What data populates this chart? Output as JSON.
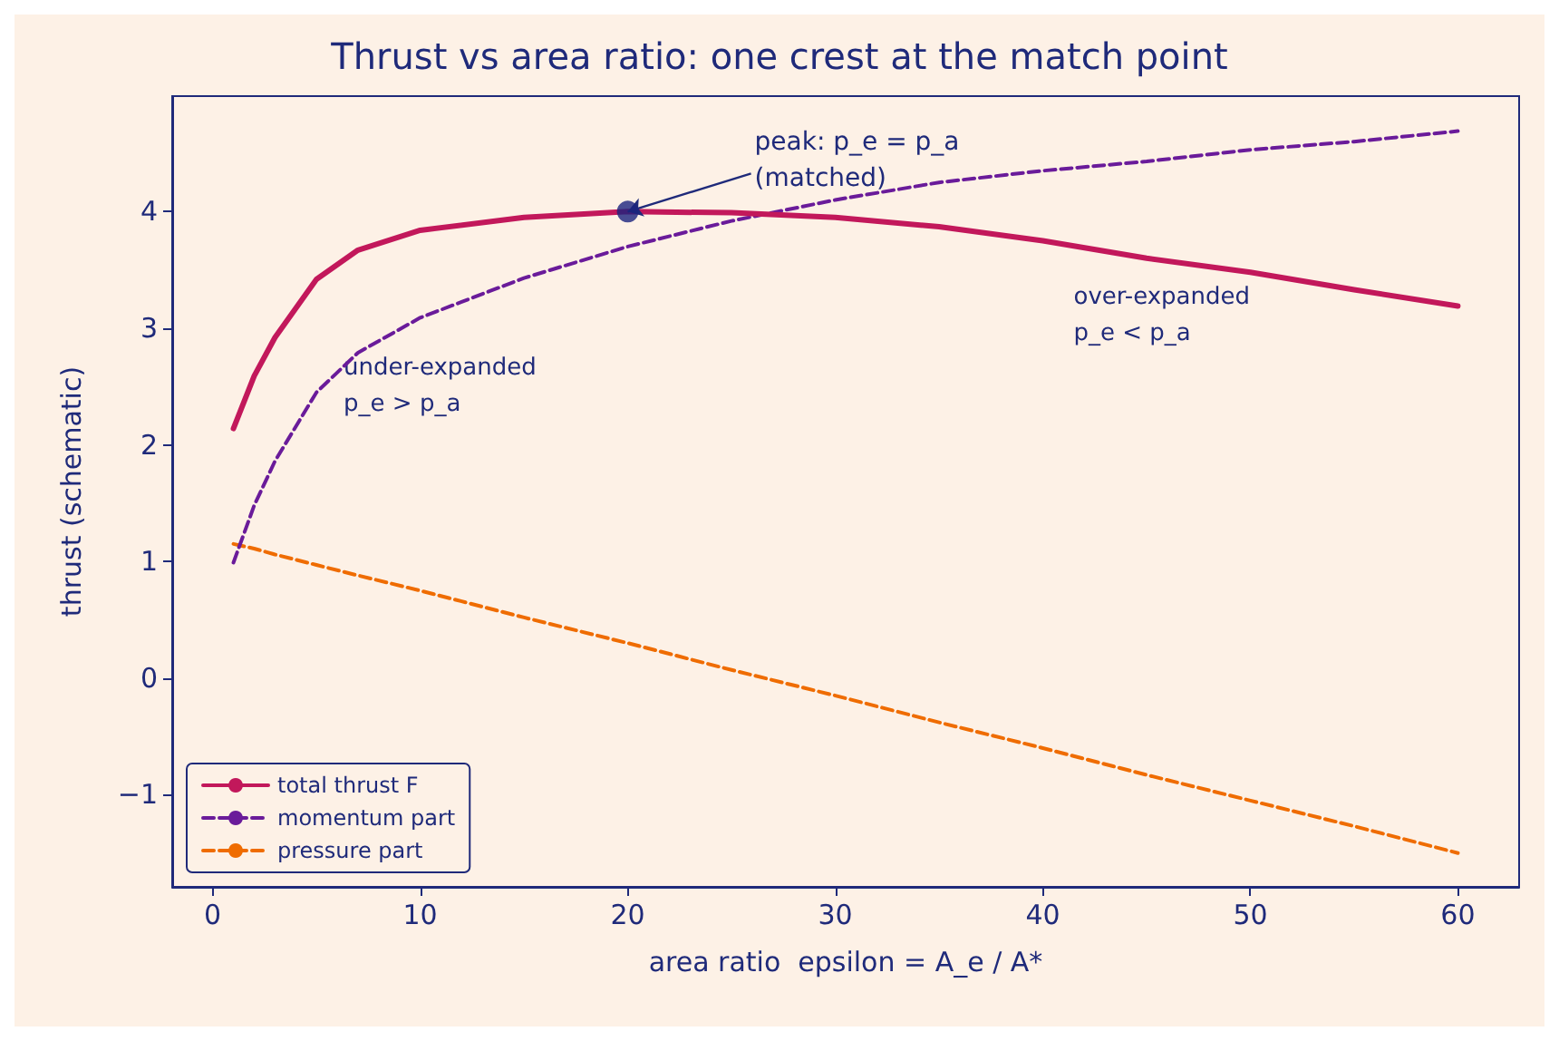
{
  "chart_data": {
    "type": "line",
    "title": "Thrust vs area ratio: one crest at the match point",
    "xlabel": "area ratio  epsilon = A_e / A*",
    "ylabel": "thrust (schematic)",
    "x": [
      1,
      2,
      3,
      5,
      7,
      10,
      15,
      20,
      25,
      30,
      35,
      40,
      45,
      50,
      55,
      60
    ],
    "series": [
      {
        "name": "total thrust F",
        "color": "#c2185b",
        "line_style": "solid",
        "values": [
          2.14,
          2.59,
          2.92,
          3.42,
          3.67,
          3.84,
          3.95,
          4.0,
          3.99,
          3.95,
          3.87,
          3.75,
          3.6,
          3.48,
          3.33,
          3.19
        ]
      },
      {
        "name": "momentum part",
        "color": "#6a1b9a",
        "line_style": "dashed",
        "values": [
          0.99,
          1.48,
          1.86,
          2.45,
          2.79,
          3.09,
          3.43,
          3.7,
          3.92,
          4.1,
          4.25,
          4.35,
          4.43,
          4.53,
          4.6,
          4.69
        ]
      },
      {
        "name": "pressure part",
        "color": "#ef6c00",
        "line_style": "dashed",
        "values": [
          1.15,
          1.11,
          1.06,
          0.97,
          0.88,
          0.75,
          0.52,
          0.3,
          0.07,
          -0.15,
          -0.38,
          -0.6,
          -0.83,
          -1.05,
          -1.27,
          -1.5
        ]
      },
      {
        "type": "scatter",
        "color": "#1a237e",
        "marker": "circle",
        "x": [
          20
        ],
        "values": [
          4.0
        ]
      }
    ],
    "annotations": [
      {
        "text": "peak: p_e = p_a\n(matched)",
        "x": 20,
        "y": 4.0
      },
      "under-expanded\np_e > p_a",
      "over-expanded\np_e < p_a"
    ],
    "xlim": [
      -1.95,
      62.95
    ],
    "ylim": [
      -1.79,
      4.99
    ],
    "xticks": [
      0,
      10,
      20,
      30,
      40,
      50,
      60
    ],
    "yticks": [
      -1,
      0,
      1,
      2,
      3,
      4
    ],
    "grid": false,
    "legend": "bottom left",
    "marker": "none"
  }
}
